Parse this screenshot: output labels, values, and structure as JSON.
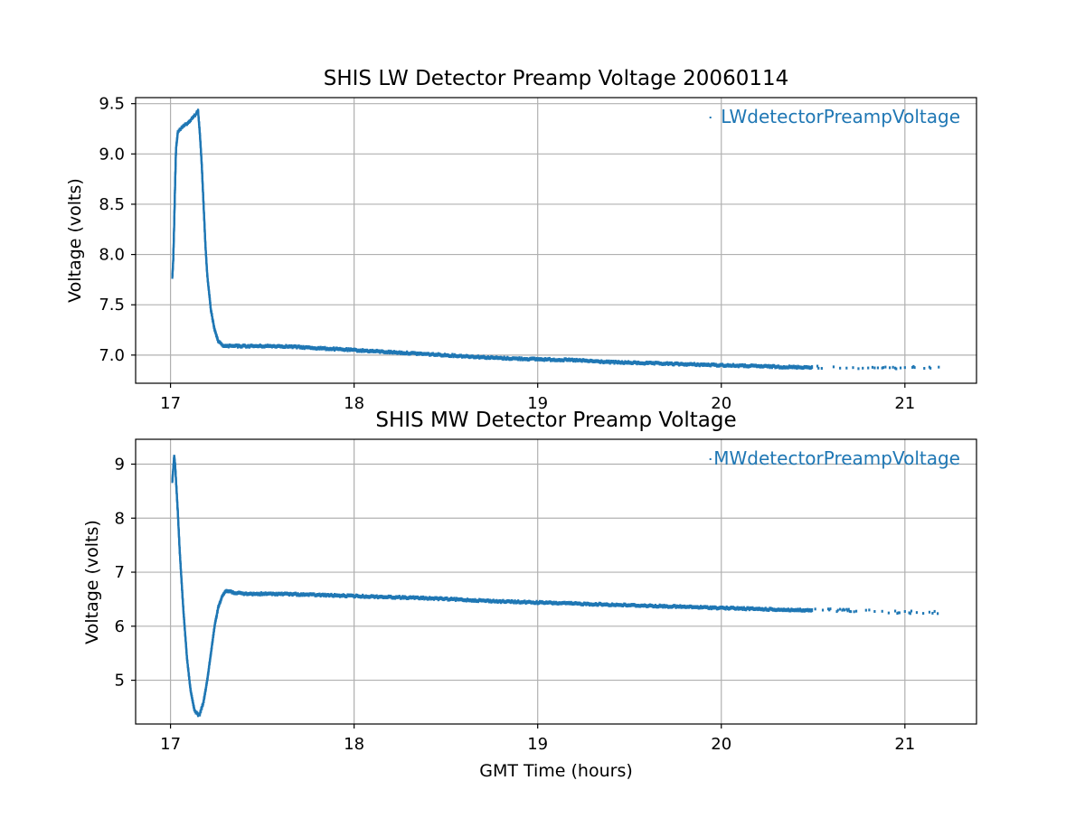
{
  "chart_data": [
    {
      "type": "scatter",
      "title": "SHIS LW Detector Preamp Voltage 20060114",
      "xlabel": "",
      "ylabel": "Voltage (volts)",
      "xlim": [
        16.81,
        21.39
      ],
      "ylim": [
        6.72,
        9.56
      ],
      "xticks": [
        17,
        18,
        19,
        20,
        21
      ],
      "yticks": [
        7.0,
        7.5,
        8.0,
        8.5,
        9.0,
        9.5
      ],
      "ytick_labels": [
        "7.0",
        "7.5",
        "8.0",
        "8.5",
        "9.0",
        "9.5"
      ],
      "grid": true,
      "legend_position": "upper right",
      "series": [
        {
          "name": "LWdetectorPreampVoltage",
          "color": "#1f77b4",
          "marker": "point",
          "x": [
            17.01,
            17.015,
            17.02,
            17.025,
            17.03,
            17.04,
            17.06,
            17.08,
            17.1,
            17.12,
            17.14,
            17.15,
            17.16,
            17.17,
            17.18,
            17.19,
            17.2,
            17.22,
            17.24,
            17.26,
            17.28,
            17.3,
            17.35,
            17.4,
            17.5,
            17.6,
            17.7,
            17.8,
            17.9,
            18.0,
            18.2,
            18.4,
            18.6,
            18.8,
            19.0,
            19.2,
            19.4,
            19.6,
            19.8,
            20.0,
            20.2,
            20.4,
            20.5,
            20.6,
            20.7,
            20.8,
            20.9,
            21.0,
            21.1,
            21.19
          ],
          "y": [
            7.78,
            7.95,
            8.3,
            8.7,
            9.05,
            9.22,
            9.26,
            9.29,
            9.32,
            9.36,
            9.4,
            9.43,
            9.2,
            8.9,
            8.5,
            8.1,
            7.8,
            7.45,
            7.25,
            7.14,
            7.1,
            7.09,
            7.09,
            7.09,
            7.09,
            7.09,
            7.08,
            7.07,
            7.06,
            7.05,
            7.03,
            7.01,
            6.99,
            6.97,
            6.96,
            6.95,
            6.93,
            6.92,
            6.91,
            6.9,
            6.89,
            6.88,
            6.88,
            6.87,
            6.87,
            6.87,
            6.87,
            6.87,
            6.87,
            6.87
          ]
        }
      ]
    },
    {
      "type": "scatter",
      "title": "SHIS MW Detector Preamp Voltage",
      "xlabel": "GMT Time (hours)",
      "ylabel": "Voltage (volts)",
      "xlim": [
        16.81,
        21.39
      ],
      "ylim": [
        4.19,
        9.46
      ],
      "xticks": [
        17,
        18,
        19,
        20,
        21
      ],
      "yticks": [
        5,
        6,
        7,
        8,
        9
      ],
      "ytick_labels": [
        "5",
        "6",
        "7",
        "8",
        "9"
      ],
      "grid": true,
      "legend_position": "upper right",
      "series": [
        {
          "name": "MWdetectorPreampVoltage",
          "color": "#1f77b4",
          "marker": "point",
          "x": [
            17.01,
            17.02,
            17.025,
            17.03,
            17.04,
            17.05,
            17.07,
            17.09,
            17.11,
            17.13,
            17.15,
            17.16,
            17.18,
            17.2,
            17.22,
            17.24,
            17.26,
            17.28,
            17.3,
            17.32,
            17.35,
            17.4,
            17.5,
            17.6,
            17.7,
            17.8,
            17.9,
            18.0,
            18.2,
            18.4,
            18.6,
            18.8,
            19.0,
            19.2,
            19.4,
            19.6,
            19.8,
            20.0,
            20.2,
            20.4,
            20.5,
            20.6,
            20.7,
            20.8,
            20.9,
            21.0,
            21.1,
            21.19
          ],
          "y": [
            8.7,
            9.15,
            9.0,
            8.7,
            8.1,
            7.4,
            6.3,
            5.4,
            4.8,
            4.45,
            4.36,
            4.38,
            4.6,
            5.0,
            5.5,
            6.0,
            6.35,
            6.55,
            6.65,
            6.65,
            6.62,
            6.6,
            6.6,
            6.6,
            6.59,
            6.58,
            6.57,
            6.56,
            6.54,
            6.52,
            6.49,
            6.46,
            6.44,
            6.42,
            6.4,
            6.38,
            6.36,
            6.34,
            6.32,
            6.3,
            6.29,
            6.29,
            6.28,
            6.27,
            6.26,
            6.25,
            6.25,
            6.25
          ]
        }
      ]
    }
  ]
}
